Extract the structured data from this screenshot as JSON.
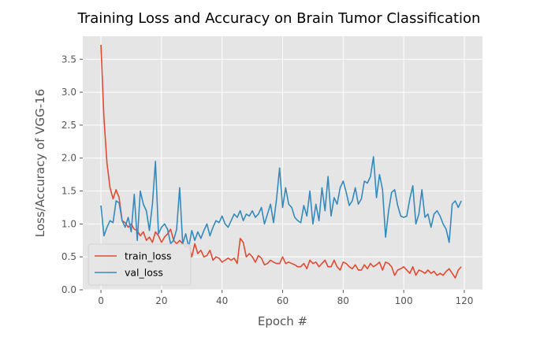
{
  "chart_data": {
    "type": "line",
    "title": "Training Loss and Accuracy on Brain Tumor Classification",
    "xlabel": "Epoch #",
    "ylabel": "Loss/Accuracy of VGG-16",
    "xlim": [
      -6,
      126
    ],
    "ylim": [
      0,
      3.85
    ],
    "xticks": [
      0,
      20,
      40,
      60,
      80,
      100,
      120
    ],
    "yticks": [
      0.0,
      0.5,
      1.0,
      1.5,
      2.0,
      2.5,
      3.0,
      3.5
    ],
    "grid": true,
    "legend_position": "lower-left",
    "style": {
      "plot_background": "#e5e5e5",
      "grid_color": "#ffffff"
    },
    "series": [
      {
        "name": "train_loss",
        "color": "#e24a33",
        "values": [
          3.72,
          2.6,
          1.92,
          1.55,
          1.38,
          1.52,
          1.4,
          1.05,
          1.02,
          0.95,
          1.0,
          0.92,
          0.9,
          0.82,
          0.88,
          0.75,
          0.8,
          0.72,
          0.88,
          0.82,
          0.72,
          0.8,
          0.85,
          0.92,
          0.75,
          0.7,
          0.75,
          0.7,
          0.65,
          0.68,
          0.5,
          0.7,
          0.55,
          0.6,
          0.5,
          0.52,
          0.6,
          0.45,
          0.5,
          0.48,
          0.42,
          0.45,
          0.48,
          0.45,
          0.48,
          0.4,
          0.78,
          0.72,
          0.5,
          0.55,
          0.5,
          0.42,
          0.52,
          0.48,
          0.38,
          0.4,
          0.45,
          0.42,
          0.4,
          0.4,
          0.5,
          0.4,
          0.42,
          0.4,
          0.38,
          0.35,
          0.35,
          0.4,
          0.32,
          0.45,
          0.4,
          0.42,
          0.35,
          0.4,
          0.45,
          0.35,
          0.35,
          0.45,
          0.35,
          0.3,
          0.42,
          0.4,
          0.35,
          0.32,
          0.38,
          0.3,
          0.3,
          0.38,
          0.32,
          0.4,
          0.35,
          0.38,
          0.42,
          0.3,
          0.42,
          0.4,
          0.35,
          0.22,
          0.3,
          0.32,
          0.35,
          0.3,
          0.25,
          0.35,
          0.22,
          0.3,
          0.28,
          0.25,
          0.3,
          0.25,
          0.28,
          0.22,
          0.25,
          0.22,
          0.28,
          0.32,
          0.25,
          0.18,
          0.3,
          0.35
        ]
      },
      {
        "name": "val_loss",
        "color": "#348abd",
        "values": [
          1.28,
          0.82,
          0.95,
          1.05,
          1.02,
          1.35,
          1.32,
          1.05,
          0.95,
          1.1,
          0.88,
          1.45,
          0.75,
          1.5,
          1.3,
          1.2,
          0.9,
          1.3,
          1.95,
          0.85,
          0.95,
          1.0,
          0.92,
          0.7,
          0.75,
          0.92,
          1.55,
          0.7,
          0.85,
          0.65,
          0.9,
          0.75,
          0.88,
          0.78,
          0.9,
          1.0,
          0.82,
          0.95,
          1.05,
          1.02,
          1.12,
          1.0,
          0.95,
          1.05,
          1.15,
          1.1,
          1.2,
          1.05,
          1.15,
          1.12,
          1.2,
          1.1,
          1.15,
          1.25,
          1.0,
          1.15,
          1.3,
          1.02,
          1.38,
          1.85,
          1.25,
          1.55,
          1.3,
          1.25,
          1.1,
          1.05,
          1.02,
          1.28,
          1.12,
          1.5,
          1.0,
          1.3,
          1.05,
          1.55,
          1.2,
          1.72,
          1.12,
          1.4,
          1.3,
          1.55,
          1.65,
          1.48,
          1.28,
          1.35,
          1.55,
          1.3,
          1.38,
          1.65,
          1.62,
          1.72,
          2.02,
          1.4,
          1.75,
          1.52,
          0.8,
          1.2,
          1.48,
          1.52,
          1.28,
          1.12,
          1.1,
          1.12,
          1.38,
          1.58,
          1.0,
          1.15,
          1.52,
          1.1,
          1.15,
          0.95,
          1.15,
          1.2,
          1.12,
          1.0,
          0.92,
          0.72,
          1.3,
          1.35,
          1.25,
          1.35
        ]
      }
    ]
  }
}
